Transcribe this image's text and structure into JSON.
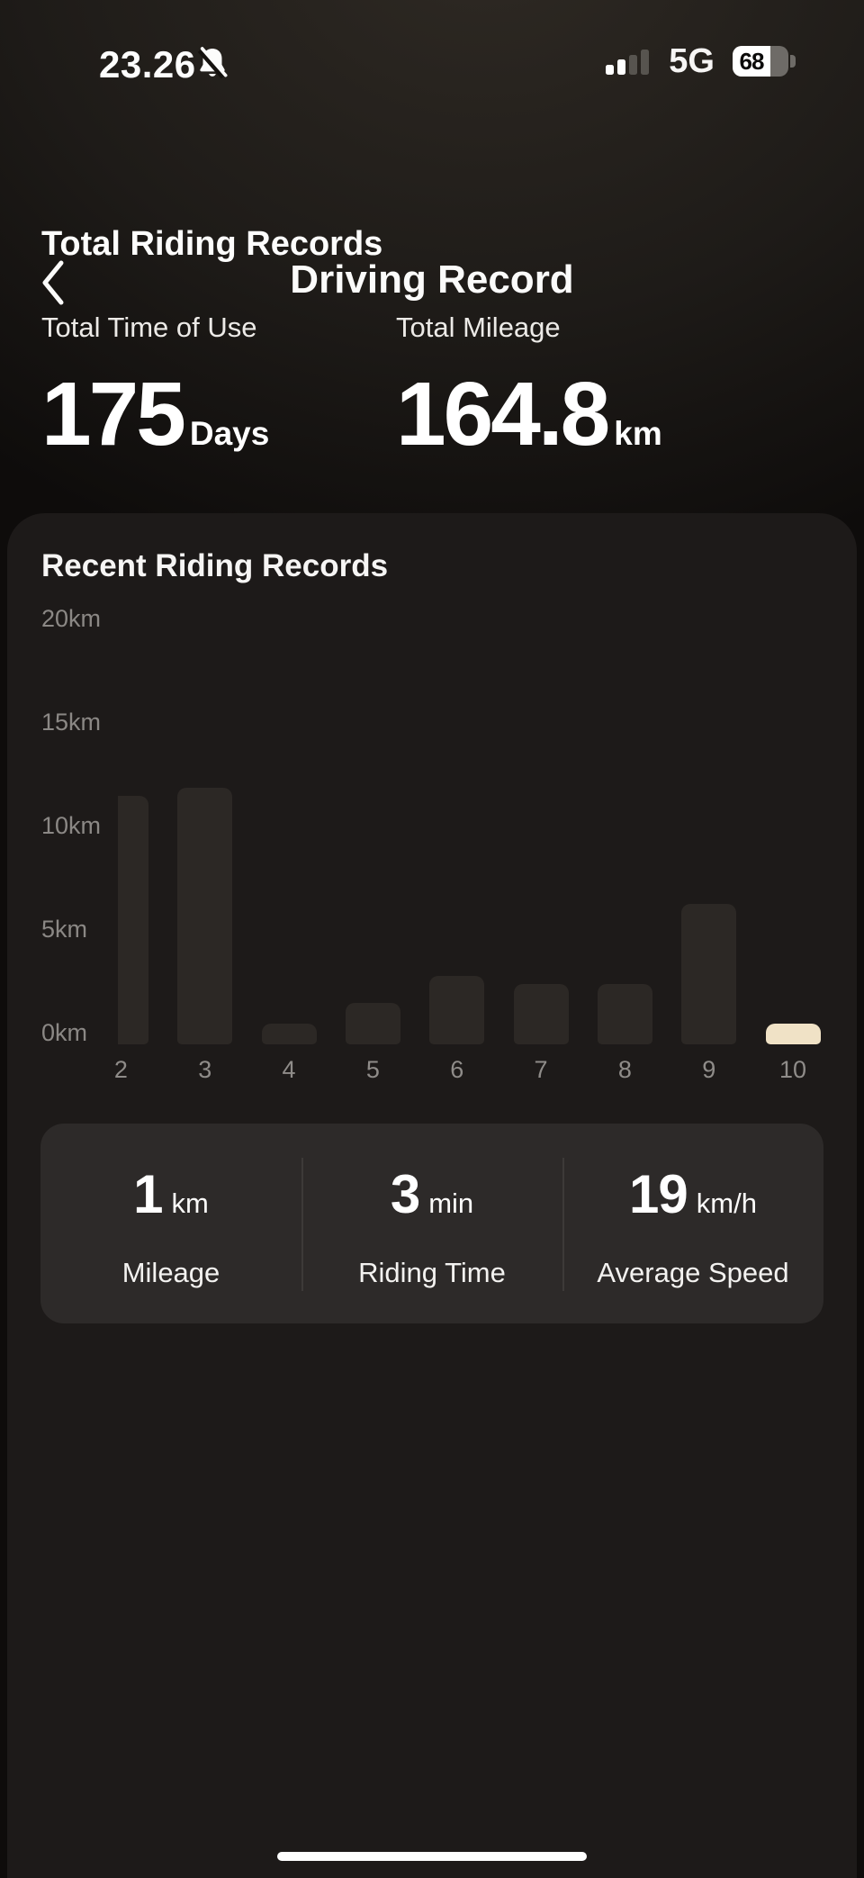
{
  "status_bar": {
    "time": "23.26",
    "network": "5G",
    "battery_percent": "68"
  },
  "header": {
    "title": "Driving Record"
  },
  "totals": {
    "section_title": "Total Riding Records",
    "items": [
      {
        "label": "Total Time of Use",
        "value": "175",
        "unit": "Days"
      },
      {
        "label": "Total Mileage",
        "value": "164.8",
        "unit": "km"
      }
    ]
  },
  "recent_card": {
    "title": "Recent Riding Records"
  },
  "chart_data": {
    "type": "bar",
    "title": "Recent Riding Records",
    "categories": [
      "2",
      "3",
      "4",
      "5",
      "6",
      "7",
      "8",
      "9",
      "10"
    ],
    "values": [
      12,
      12.4,
      1,
      2,
      3.3,
      2.9,
      2.9,
      6.8,
      1
    ],
    "unit": "km",
    "xlabel": "",
    "ylabel": "",
    "ylim": [
      0,
      20
    ],
    "y_ticks": [
      {
        "value": 0,
        "label": "0km"
      },
      {
        "value": 5,
        "label": "5km"
      },
      {
        "value": 10,
        "label": "10km"
      },
      {
        "value": 15,
        "label": "15km"
      },
      {
        "value": 20,
        "label": "20km"
      }
    ],
    "grid": false,
    "legend": false,
    "selected_index": 8,
    "bar_color": "#2c2825",
    "selected_bar_color": "#f0e2c6",
    "axis_text_color": "#8b8885"
  },
  "ride_stats": {
    "items": [
      {
        "value": "1",
        "unit": "km",
        "label": "Mileage"
      },
      {
        "value": "3",
        "unit": "min",
        "label": "Riding Time"
      },
      {
        "value": "19",
        "unit": "km/h",
        "label": "Average Speed"
      }
    ]
  }
}
